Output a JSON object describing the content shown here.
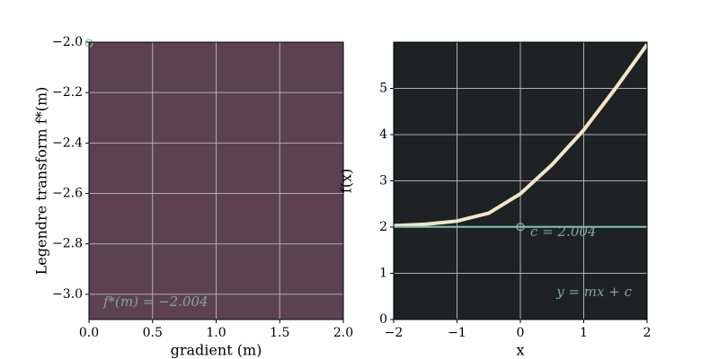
{
  "chart_data": [
    {
      "type": "scatter",
      "xlabel": "gradient (m)",
      "ylabel": "Legendre transform f*(m)",
      "background": "#5d4150",
      "grid": true,
      "xlim": [
        0,
        2
      ],
      "ylim": [
        -3.1,
        -2.0
      ],
      "xticks": [
        {
          "value": 0,
          "label": "0.0"
        },
        0.5,
        {
          "value": 1,
          "label": "1.0"
        },
        1.5,
        {
          "value": 2,
          "label": "2.0"
        }
      ],
      "yticks": [
        {
          "value": -2.0,
          "label": "−2.0"
        },
        {
          "value": -2.2,
          "label": "−2.2"
        },
        {
          "value": -2.4,
          "label": "−2.4"
        },
        {
          "value": -2.6,
          "label": "−2.6"
        },
        {
          "value": -2.8,
          "label": "−2.8"
        },
        {
          "value": -3.0,
          "label": "−3.0"
        }
      ],
      "points": [
        {
          "x": 0,
          "y": -2.004,
          "color": "#7fc4b8"
        }
      ],
      "annotations": [
        "f*(m) = −2.004"
      ]
    },
    {
      "type": "line",
      "xlabel": "x",
      "ylabel": "f(x)",
      "background": "#1f2224",
      "grid": true,
      "xlim": [
        -2,
        2
      ],
      "ylim": [
        0,
        6
      ],
      "xticks": [
        {
          "value": -2,
          "label": "−2"
        },
        {
          "value": -1,
          "label": "−1"
        },
        0,
        1,
        2
      ],
      "yticks": [
        0,
        1,
        2,
        3,
        4,
        5
      ],
      "series": [
        {
          "color": "#f1e6c8",
          "width": 4,
          "x": [
            -2,
            -1.5,
            -1,
            -0.5,
            0,
            0.5,
            1,
            1.5,
            2
          ],
          "values": [
            2.03,
            2.06,
            2.13,
            2.3,
            2.72,
            3.35,
            4.1,
            5.0,
            5.95
          ]
        },
        {
          "color": "#7fc4b8",
          "width": 2,
          "x": [
            -2,
            2
          ],
          "values": [
            2.004,
            2.004
          ]
        }
      ],
      "points": [
        {
          "x": 0,
          "y": 2.004,
          "color": "#7fc4b8"
        }
      ],
      "annotations": [
        "c = 2.004",
        "y = mx + c"
      ]
    }
  ]
}
